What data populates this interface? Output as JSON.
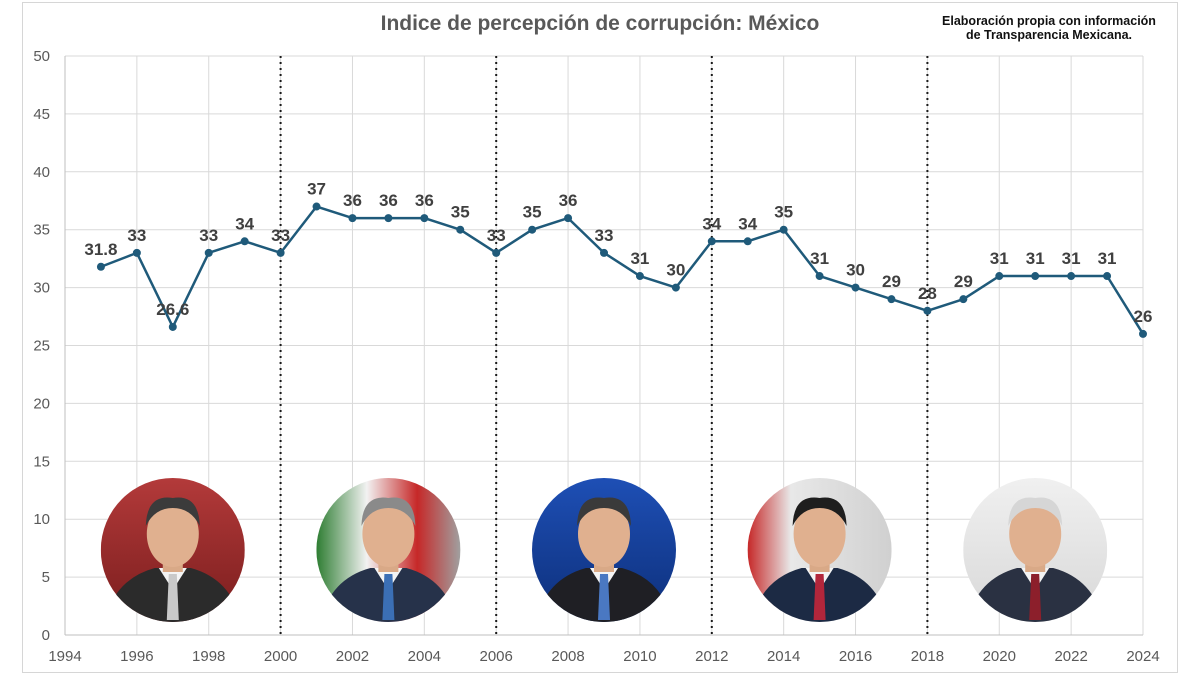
{
  "title": "Indice de percepción de corrupción: México",
  "source_note": {
    "line1": "Elaboración propia con información",
    "line2": "de Transparencia Mexicana."
  },
  "colors": {
    "line": "#1f5a7a",
    "grid": "#d9d9d9",
    "text": "#404040"
  },
  "chart_data": {
    "type": "line",
    "title": "Indice de percepción de corrupción: México",
    "xlabel": "",
    "ylabel": "",
    "xlim": [
      1994,
      2024
    ],
    "ylim": [
      0,
      50
    ],
    "x_ticks": [
      1994,
      1996,
      1998,
      2000,
      2002,
      2004,
      2006,
      2008,
      2010,
      2012,
      2014,
      2016,
      2018,
      2020,
      2022,
      2024
    ],
    "y_ticks": [
      0,
      5,
      10,
      15,
      20,
      25,
      30,
      35,
      40,
      45,
      50
    ],
    "grid": true,
    "series": [
      {
        "name": "México",
        "x": [
          1995,
          1996,
          1997,
          1998,
          1999,
          2000,
          2001,
          2002,
          2003,
          2004,
          2005,
          2006,
          2007,
          2008,
          2009,
          2010,
          2011,
          2012,
          2013,
          2014,
          2015,
          2016,
          2017,
          2018,
          2019,
          2020,
          2021,
          2022,
          2023,
          2024
        ],
        "values": [
          31.8,
          33,
          26.6,
          33,
          34,
          33,
          37,
          36,
          36,
          36,
          35,
          33,
          35,
          36,
          33,
          31,
          30,
          34,
          34,
          35,
          31,
          30,
          29,
          28,
          29,
          31,
          31,
          31,
          31,
          26
        ]
      }
    ],
    "period_dividers": [
      2000,
      2006,
      2012,
      2018
    ],
    "portraits": [
      {
        "name": "ernesto-zedillo-portrait",
        "period": [
          1994,
          2000
        ]
      },
      {
        "name": "vicente-fox-portrait",
        "period": [
          2000,
          2006
        ]
      },
      {
        "name": "felipe-calderon-portrait",
        "period": [
          2006,
          2012
        ]
      },
      {
        "name": "enrique-pena-nieto-portrait",
        "period": [
          2012,
          2018
        ]
      },
      {
        "name": "andres-manuel-lopez-obrador-portrait",
        "period": [
          2018,
          2024
        ]
      }
    ]
  }
}
